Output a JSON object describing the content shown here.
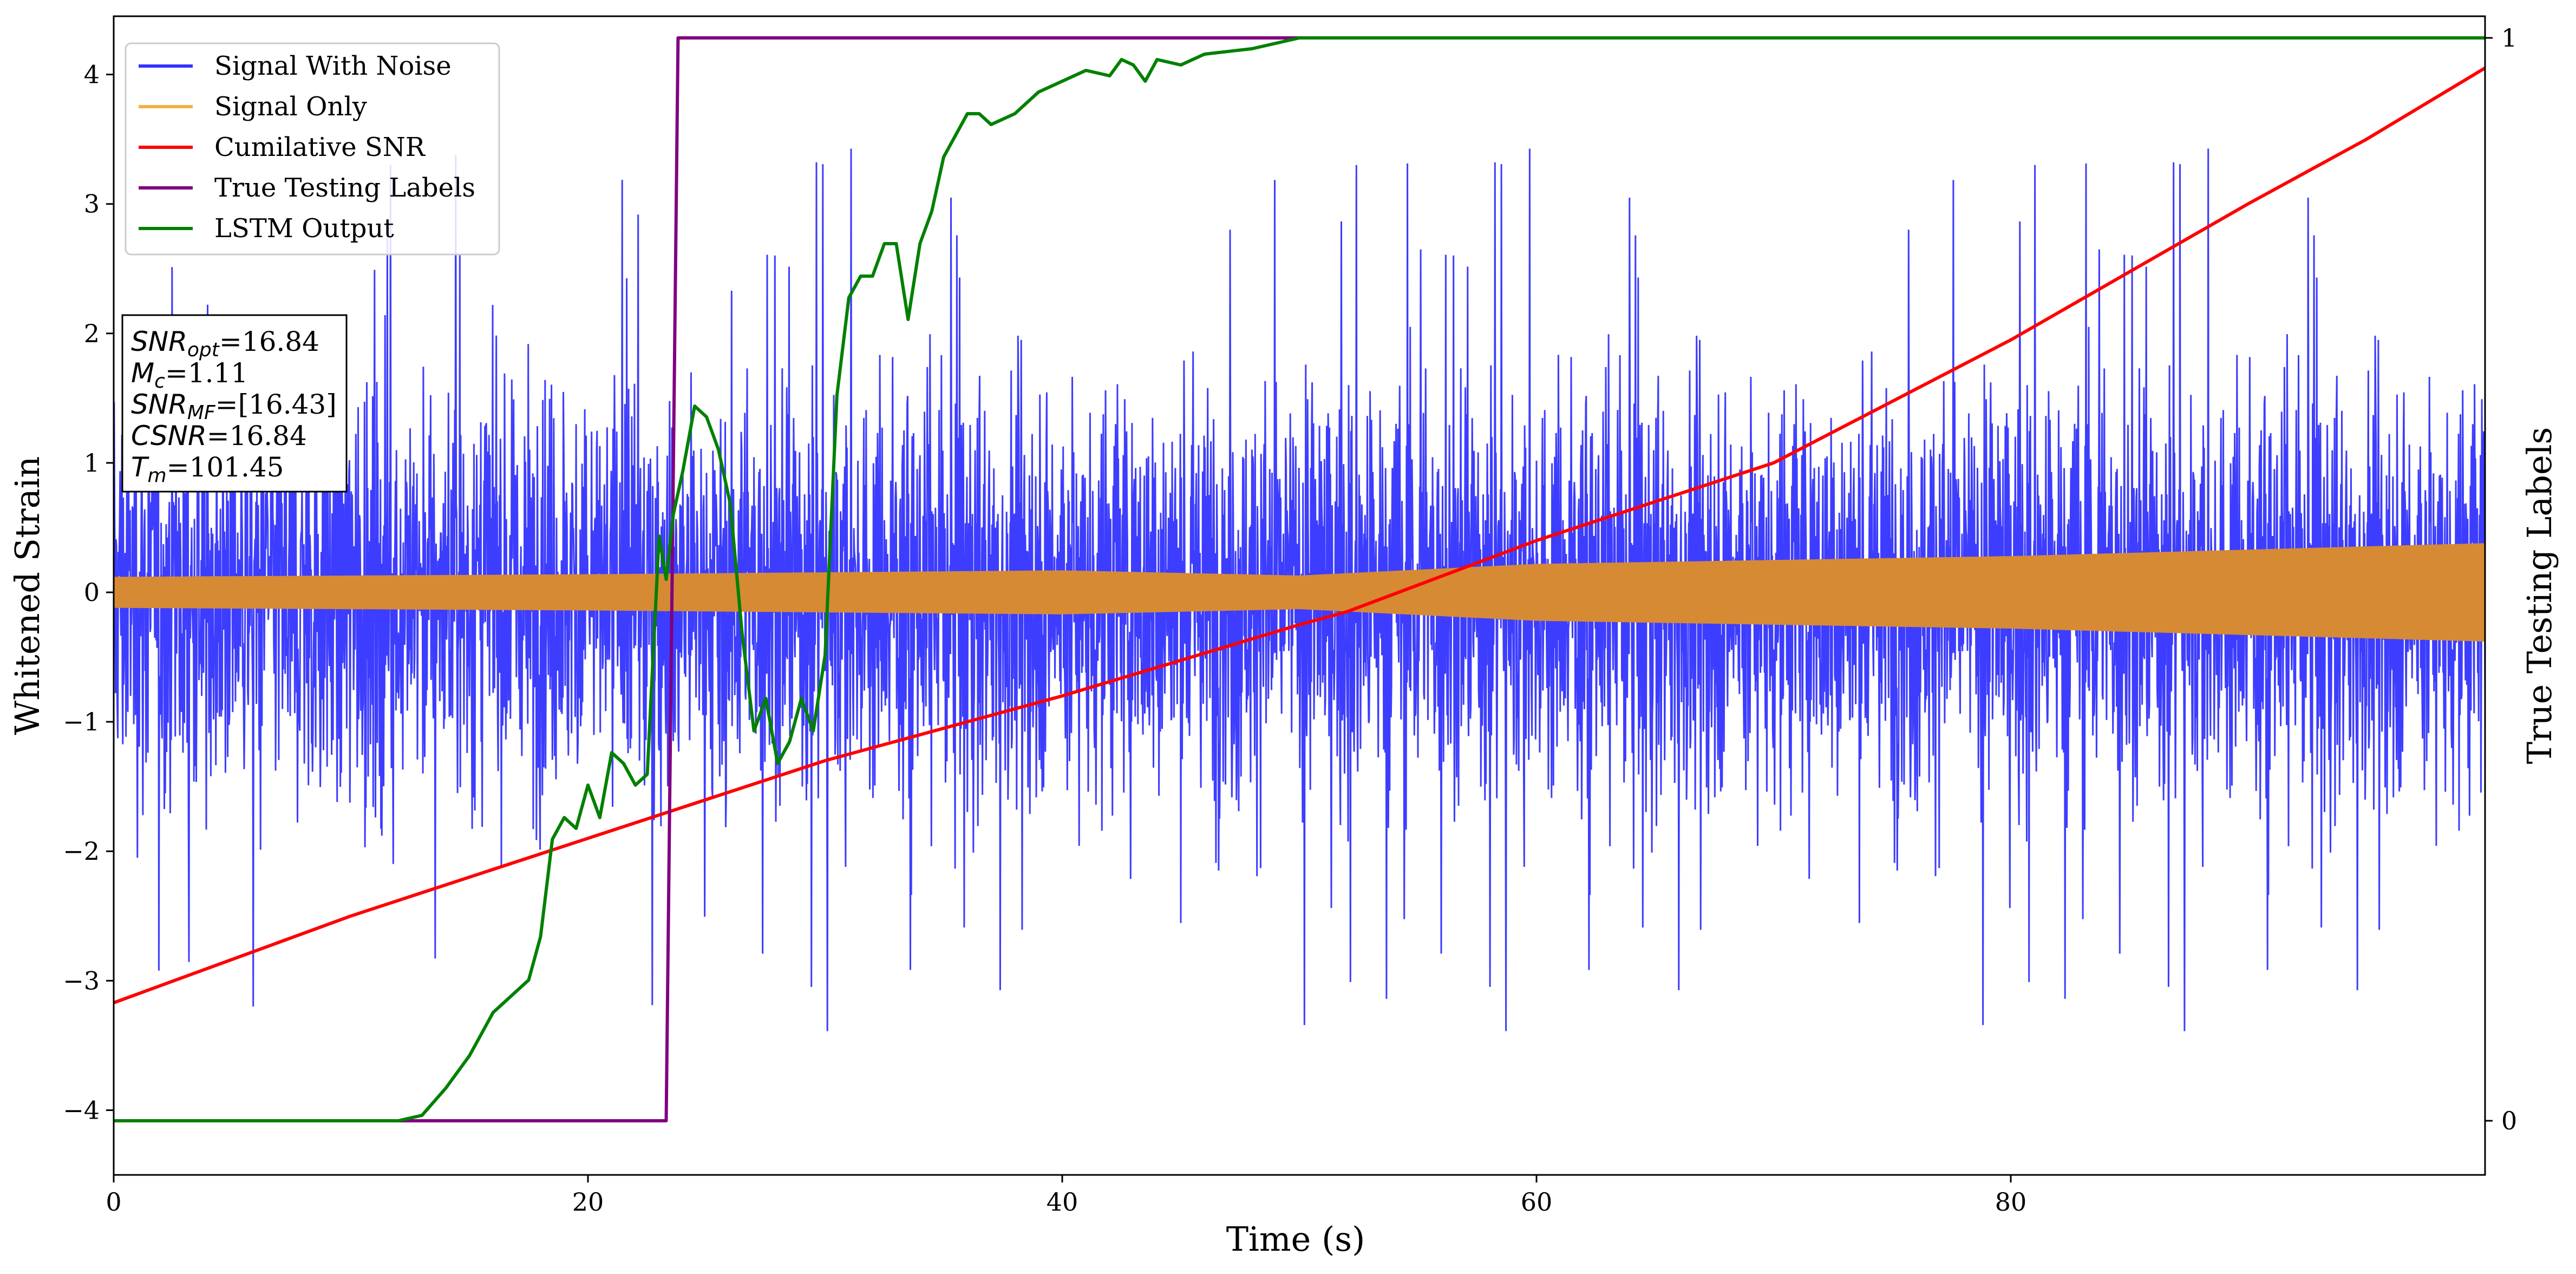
{
  "chart_data": {
    "type": "line",
    "xlabel": "Time (s)",
    "ylabel": "Whitened Strain",
    "y2label": "True Testing Labels",
    "xlim": [
      0,
      100
    ],
    "ylim": [
      -4.5,
      4.45
    ],
    "y2lim": [
      -0.05,
      1.02
    ],
    "xticks": [
      0,
      20,
      40,
      60,
      80
    ],
    "yticks": [
      -4,
      -3,
      -2,
      -1,
      0,
      1,
      2,
      3,
      4
    ],
    "y2ticks": [
      0,
      1
    ],
    "xtick_labels": [
      "0",
      "20",
      "40",
      "60",
      "80"
    ],
    "ytick_labels": [
      "−4",
      "−3",
      "−2",
      "−1",
      "0",
      "1",
      "2",
      "3",
      "4"
    ],
    "y2tick_labels": [
      "0",
      "1"
    ],
    "legend_position": "top-left",
    "series": [
      {
        "name": "Signal With Noise",
        "color": "#3333ff",
        "axis": "left",
        "kind": "noise",
        "x_range": [
          0,
          100
        ],
        "typical_amplitude": 1.3,
        "spike_range": [
          -3.8,
          3.6
        ]
      },
      {
        "name": "Signal Only",
        "color": "#f5b041",
        "fill_color": "#d68a33",
        "axis": "left",
        "kind": "envelope",
        "x": [
          0,
          20,
          40,
          50,
          60,
          80,
          100
        ],
        "values": [
          0.12,
          0.14,
          0.17,
          0.13,
          0.22,
          0.28,
          0.38
        ]
      },
      {
        "name": "Cumilative SNR",
        "color": "#ff0000",
        "axis": "left",
        "x": [
          0,
          10,
          20,
          30,
          40,
          50,
          52,
          60,
          70,
          80,
          90,
          95,
          100
        ],
        "values": [
          -3.17,
          -2.5,
          -1.9,
          -1.3,
          -0.8,
          -0.25,
          -0.15,
          0.4,
          1.0,
          1.95,
          3.0,
          3.5,
          4.05
        ]
      },
      {
        "name": "True Testing Labels",
        "color": "#800080",
        "axis": "right",
        "x": [
          0,
          23.3,
          23.8,
          100
        ],
        "values": [
          0,
          0,
          1,
          1
        ]
      },
      {
        "name": "LSTM Output",
        "color": "#008000",
        "axis": "right",
        "x": [
          0,
          12,
          13,
          14,
          15,
          16,
          17,
          17.5,
          18,
          18.5,
          19,
          19.5,
          20,
          20.5,
          21,
          21.5,
          22,
          22.5,
          23,
          23.3,
          23.6,
          24,
          24.5,
          25,
          25.5,
          26,
          26.5,
          27,
          27.5,
          28,
          28.5,
          29,
          29.5,
          30,
          30.5,
          31,
          31.5,
          32,
          32.5,
          33,
          33.5,
          34,
          34.5,
          35,
          35.5,
          36,
          36.5,
          37,
          38,
          39,
          40,
          41,
          42,
          42.5,
          43,
          43.5,
          44,
          45,
          46,
          48,
          50,
          55,
          60,
          100
        ],
        "values": [
          0,
          0,
          0.005,
          0.03,
          0.06,
          0.1,
          0.12,
          0.13,
          0.17,
          0.26,
          0.28,
          0.27,
          0.31,
          0.28,
          0.34,
          0.33,
          0.31,
          0.32,
          0.54,
          0.5,
          0.56,
          0.6,
          0.66,
          0.65,
          0.62,
          0.57,
          0.45,
          0.36,
          0.39,
          0.33,
          0.35,
          0.39,
          0.36,
          0.43,
          0.67,
          0.76,
          0.78,
          0.78,
          0.81,
          0.81,
          0.74,
          0.81,
          0.84,
          0.89,
          0.91,
          0.93,
          0.93,
          0.92,
          0.93,
          0.95,
          0.96,
          0.97,
          0.965,
          0.98,
          0.975,
          0.96,
          0.98,
          0.975,
          0.985,
          0.99,
          1.0,
          1.0,
          1.0,
          1.0
        ]
      }
    ],
    "annotation": {
      "lines": [
        {
          "label": "SNR",
          "sub": "opt",
          "value": "=16.84"
        },
        {
          "label": "M",
          "sub": "c",
          "value": "=1.11"
        },
        {
          "label": "SNR",
          "sub": "MF",
          "value": "=[16.43]"
        },
        {
          "label": "CSNR",
          "sub": "",
          "value": "=16.84"
        },
        {
          "label": "T",
          "sub": "m",
          "value": "=101.45"
        }
      ]
    }
  }
}
